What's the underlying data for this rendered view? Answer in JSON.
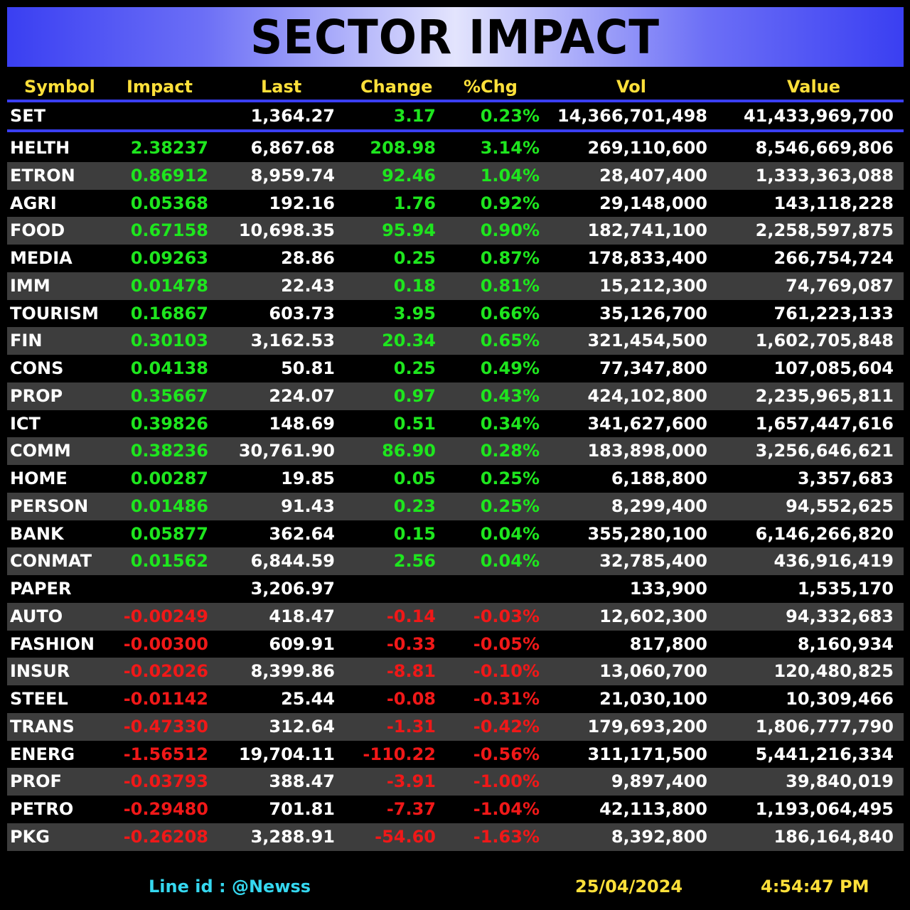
{
  "title": "SECTOR IMPACT",
  "colors": {
    "positive": "#1ee61e",
    "negative": "#f01818",
    "header": "#ffe03a",
    "accent_blue": "#3a3ff2",
    "footer_line": "#35d8f0"
  },
  "columns": [
    "Symbol",
    "Impact",
    "Last",
    "Change",
    "%Chg",
    "Vol",
    "Value"
  ],
  "set_row": {
    "symbol": "SET",
    "impact": "",
    "last": "1,364.27",
    "change": "3.17",
    "pct": "0.23%",
    "vol": "14,366,701,498",
    "value": "41,433,969,700",
    "dir": "pos"
  },
  "rows": [
    {
      "symbol": "HELTH",
      "impact": "2.38237",
      "last": "6,867.68",
      "change": "208.98",
      "pct": "3.14%",
      "vol": "269,110,600",
      "value": "8,546,669,806",
      "dir": "pos"
    },
    {
      "symbol": "ETRON",
      "impact": "0.86912",
      "last": "8,959.74",
      "change": "92.46",
      "pct": "1.04%",
      "vol": "28,407,400",
      "value": "1,333,363,088",
      "dir": "pos"
    },
    {
      "symbol": "AGRI",
      "impact": "0.05368",
      "last": "192.16",
      "change": "1.76",
      "pct": "0.92%",
      "vol": "29,148,000",
      "value": "143,118,228",
      "dir": "pos"
    },
    {
      "symbol": "FOOD",
      "impact": "0.67158",
      "last": "10,698.35",
      "change": "95.94",
      "pct": "0.90%",
      "vol": "182,741,100",
      "value": "2,258,597,875",
      "dir": "pos"
    },
    {
      "symbol": "MEDIA",
      "impact": "0.09263",
      "last": "28.86",
      "change": "0.25",
      "pct": "0.87%",
      "vol": "178,833,400",
      "value": "266,754,724",
      "dir": "pos"
    },
    {
      "symbol": "IMM",
      "impact": "0.01478",
      "last": "22.43",
      "change": "0.18",
      "pct": "0.81%",
      "vol": "15,212,300",
      "value": "74,769,087",
      "dir": "pos"
    },
    {
      "symbol": "TOURISM",
      "impact": "0.16867",
      "last": "603.73",
      "change": "3.95",
      "pct": "0.66%",
      "vol": "35,126,700",
      "value": "761,223,133",
      "dir": "pos"
    },
    {
      "symbol": "FIN",
      "impact": "0.30103",
      "last": "3,162.53",
      "change": "20.34",
      "pct": "0.65%",
      "vol": "321,454,500",
      "value": "1,602,705,848",
      "dir": "pos"
    },
    {
      "symbol": "CONS",
      "impact": "0.04138",
      "last": "50.81",
      "change": "0.25",
      "pct": "0.49%",
      "vol": "77,347,800",
      "value": "107,085,604",
      "dir": "pos"
    },
    {
      "symbol": "PROP",
      "impact": "0.35667",
      "last": "224.07",
      "change": "0.97",
      "pct": "0.43%",
      "vol": "424,102,800",
      "value": "2,235,965,811",
      "dir": "pos"
    },
    {
      "symbol": "ICT",
      "impact": "0.39826",
      "last": "148.69",
      "change": "0.51",
      "pct": "0.34%",
      "vol": "341,627,600",
      "value": "1,657,447,616",
      "dir": "pos"
    },
    {
      "symbol": "COMM",
      "impact": "0.38236",
      "last": "30,761.90",
      "change": "86.90",
      "pct": "0.28%",
      "vol": "183,898,000",
      "value": "3,256,646,621",
      "dir": "pos"
    },
    {
      "symbol": "HOME",
      "impact": "0.00287",
      "last": "19.85",
      "change": "0.05",
      "pct": "0.25%",
      "vol": "6,188,800",
      "value": "3,357,683",
      "dir": "pos"
    },
    {
      "symbol": "PERSON",
      "impact": "0.01486",
      "last": "91.43",
      "change": "0.23",
      "pct": "0.25%",
      "vol": "8,299,400",
      "value": "94,552,625",
      "dir": "pos"
    },
    {
      "symbol": "BANK",
      "impact": "0.05877",
      "last": "362.64",
      "change": "0.15",
      "pct": "0.04%",
      "vol": "355,280,100",
      "value": "6,146,266,820",
      "dir": "pos"
    },
    {
      "symbol": "CONMAT",
      "impact": "0.01562",
      "last": "6,844.59",
      "change": "2.56",
      "pct": "0.04%",
      "vol": "32,785,400",
      "value": "436,916,419",
      "dir": "pos"
    },
    {
      "symbol": "PAPER",
      "impact": "",
      "last": "3,206.97",
      "change": "",
      "pct": "",
      "vol": "133,900",
      "value": "1,535,170",
      "dir": "flat"
    },
    {
      "symbol": "AUTO",
      "impact": "-0.00249",
      "last": "418.47",
      "change": "-0.14",
      "pct": "-0.03%",
      "vol": "12,602,300",
      "value": "94,332,683",
      "dir": "neg"
    },
    {
      "symbol": "FASHION",
      "impact": "-0.00300",
      "last": "609.91",
      "change": "-0.33",
      "pct": "-0.05%",
      "vol": "817,800",
      "value": "8,160,934",
      "dir": "neg"
    },
    {
      "symbol": "INSUR",
      "impact": "-0.02026",
      "last": "8,399.86",
      "change": "-8.81",
      "pct": "-0.10%",
      "vol": "13,060,700",
      "value": "120,480,825",
      "dir": "neg"
    },
    {
      "symbol": "STEEL",
      "impact": "-0.01142",
      "last": "25.44",
      "change": "-0.08",
      "pct": "-0.31%",
      "vol": "21,030,100",
      "value": "10,309,466",
      "dir": "neg"
    },
    {
      "symbol": "TRANS",
      "impact": "-0.47330",
      "last": "312.64",
      "change": "-1.31",
      "pct": "-0.42%",
      "vol": "179,693,200",
      "value": "1,806,777,790",
      "dir": "neg"
    },
    {
      "symbol": "ENERG",
      "impact": "-1.56512",
      "last": "19,704.11",
      "change": "-110.22",
      "pct": "-0.56%",
      "vol": "311,171,500",
      "value": "5,441,216,334",
      "dir": "neg"
    },
    {
      "symbol": "PROF",
      "impact": "-0.03793",
      "last": "388.47",
      "change": "-3.91",
      "pct": "-1.00%",
      "vol": "9,897,400",
      "value": "39,840,019",
      "dir": "neg"
    },
    {
      "symbol": "PETRO",
      "impact": "-0.29480",
      "last": "701.81",
      "change": "-7.37",
      "pct": "-1.04%",
      "vol": "42,113,800",
      "value": "1,193,064,495",
      "dir": "neg"
    },
    {
      "symbol": "PKG",
      "impact": "-0.26208",
      "last": "3,288.91",
      "change": "-54.60",
      "pct": "-1.63%",
      "vol": "8,392,800",
      "value": "186,164,840",
      "dir": "neg"
    }
  ],
  "footer": {
    "line_id": "Line id  : @Newss",
    "date": "25/04/2024",
    "time": "4:54:47 PM"
  }
}
